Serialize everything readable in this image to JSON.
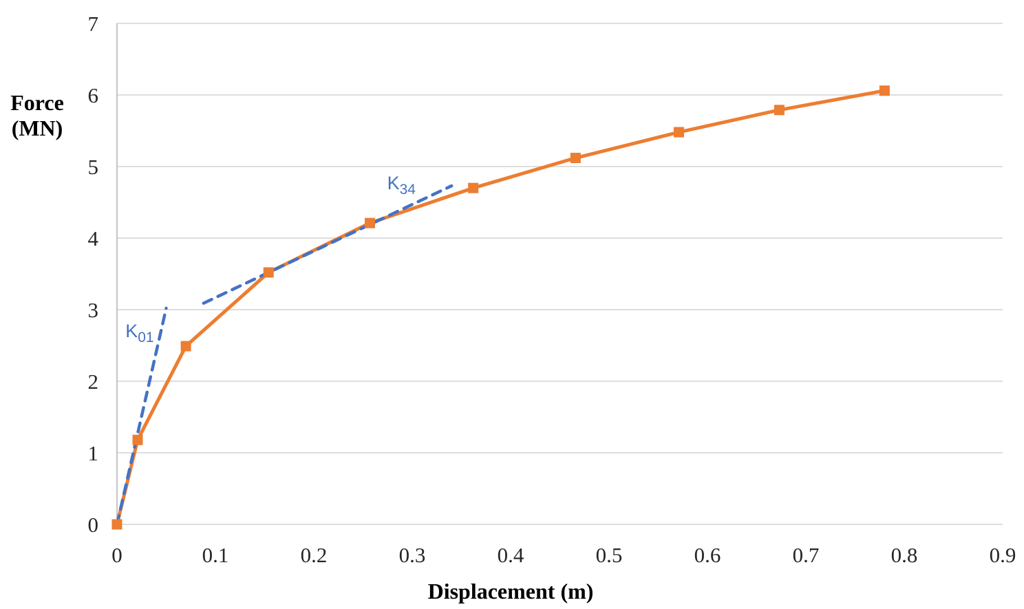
{
  "chart_data": {
    "type": "line",
    "title": "",
    "xlabel": "Displacement (m)",
    "ylabel": "Force (MN)",
    "ylabel_lines": [
      "Force",
      "(MN)"
    ],
    "xlim": [
      0,
      0.9
    ],
    "ylim": [
      0,
      7
    ],
    "x_ticks": [
      "0",
      "0.1",
      "0.2",
      "0.3",
      "0.4",
      "0.5",
      "0.6",
      "0.7",
      "0.8",
      "0.9"
    ],
    "x_tick_values": [
      0,
      0.1,
      0.2,
      0.3,
      0.4,
      0.5,
      0.6,
      0.7,
      0.8,
      0.9
    ],
    "y_ticks": [
      "0",
      "1",
      "2",
      "3",
      "4",
      "5",
      "6",
      "7"
    ],
    "y_tick_values": [
      0,
      1,
      2,
      3,
      4,
      5,
      6,
      7
    ],
    "grid": "horizontal",
    "legend": "none",
    "colors": {
      "series": "#ED7D31",
      "tangent": "#4472C4",
      "gridline": "#D9D9D9",
      "axis_line": "#BFBFBF",
      "tick_text": "#262626",
      "title_text": "#000000"
    },
    "series": [
      {
        "name": "force-displacement-curve",
        "marker": "square",
        "points": [
          [
            0,
            0
          ],
          [
            0.021,
            1.18
          ],
          [
            0.07,
            2.49
          ],
          [
            0.154,
            3.52
          ],
          [
            0.257,
            4.21
          ],
          [
            0.362,
            4.7
          ],
          [
            0.466,
            5.12
          ],
          [
            0.571,
            5.48
          ],
          [
            0.673,
            5.79
          ],
          [
            0.78,
            6.06
          ]
        ]
      }
    ],
    "annotations": [
      {
        "name": "k01",
        "label": "K",
        "subscript": "01",
        "style": "dashed",
        "line": [
          [
            0,
            0
          ],
          [
            0.05,
            3.02
          ]
        ],
        "label_pos": [
          0.023,
          2.7
        ]
      },
      {
        "name": "k34",
        "label": "K",
        "subscript": "34",
        "style": "dashed",
        "line": [
          [
            0.088,
            3.09
          ],
          [
            0.34,
            4.73
          ]
        ],
        "label_pos": [
          0.289,
          4.77
        ]
      }
    ]
  }
}
